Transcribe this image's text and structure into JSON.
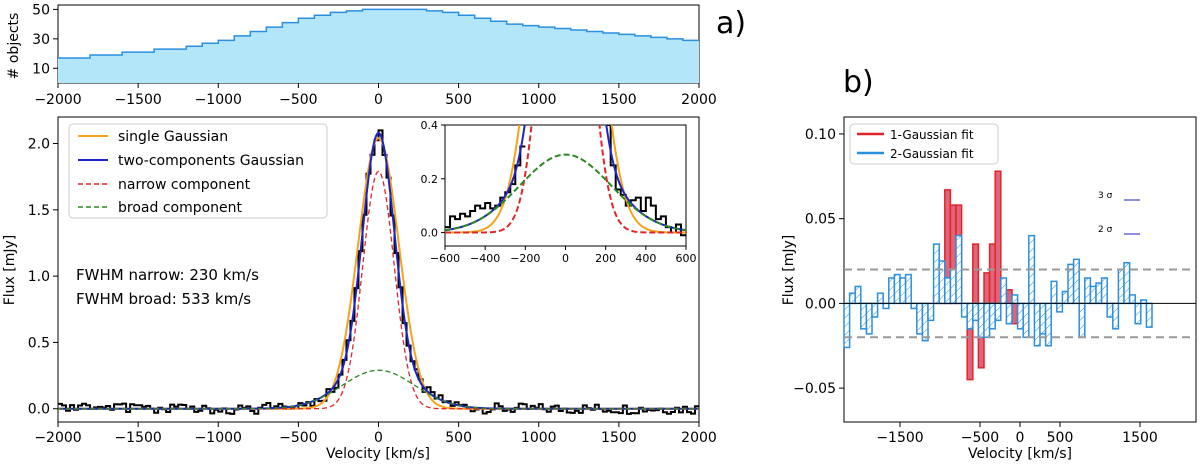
{
  "panel_labels": {
    "a": "a)",
    "b": "b)"
  },
  "chart_data": [
    {
      "id": "hist",
      "type": "area",
      "xlabel": "",
      "ylabel": "# objects",
      "xlim": [
        -2000,
        2000
      ],
      "ylim": [
        0,
        53
      ],
      "xticks": [
        -2000,
        -1500,
        -1000,
        -500,
        0,
        500,
        1000,
        1500,
        2000
      ],
      "yticks": [
        10,
        30,
        50
      ],
      "color": "#2b8fe0",
      "fill": "#b3e6f8",
      "series": [
        {
          "name": "objects",
          "x": [
            -2000,
            -1800,
            -1600,
            -1400,
            -1200,
            -1100,
            -1000,
            -900,
            -800,
            -700,
            -600,
            -500,
            -400,
            -300,
            -200,
            -100,
            0,
            100,
            200,
            300,
            400,
            500,
            600,
            700,
            800,
            900,
            1000,
            1100,
            1200,
            1300,
            1400,
            1500,
            1600,
            1700,
            1800,
            1900,
            2000
          ],
          "y": [
            17,
            19,
            21,
            23,
            25,
            27,
            29,
            32,
            35,
            38,
            41,
            44,
            46,
            48,
            49,
            50,
            50,
            50,
            50,
            49,
            48,
            46,
            44,
            42,
            40,
            39,
            38,
            37,
            36,
            35,
            34,
            33,
            32,
            31,
            30,
            29,
            28
          ]
        }
      ]
    },
    {
      "id": "main",
      "type": "line",
      "xlabel": "Velocity [km/s]",
      "ylabel": "Flux [mJy]",
      "xlim": [
        -2000,
        2000
      ],
      "ylim": [
        -0.1,
        2.2
      ],
      "xticks": [
        -2000,
        -1500,
        -1000,
        -500,
        0,
        500,
        1000,
        1500,
        2000
      ],
      "yticks": [
        0.0,
        0.5,
        1.0,
        1.5,
        2.0
      ],
      "legend": [
        "single Gaussian",
        "two-components Gaussian",
        "narrow component",
        "broad component"
      ],
      "annotations": [
        "FWHM narrow: 230 km/s",
        "FWHM broad: 533 km/s"
      ],
      "gaussians": [
        {
          "name": "single Gaussian",
          "color": "#f5a31a",
          "dash": false,
          "amp": 2.04,
          "fwhm": 300,
          "center": 0
        },
        {
          "name": "two-components Gaussian",
          "color": "#1f22c8",
          "dash": false,
          "components": [
            [
              1.79,
              230
            ],
            [
              0.29,
              533
            ]
          ],
          "center": 0
        },
        {
          "name": "narrow component",
          "color": "#e0252a",
          "dash": true,
          "amp": 1.79,
          "fwhm": 230,
          "center": 0
        },
        {
          "name": "broad component",
          "color": "#2a8a1e",
          "dash": true,
          "amp": 0.29,
          "fwhm": 533,
          "center": 0
        }
      ],
      "observed": {
        "name": "observed spectrum",
        "color": "#000000"
      }
    },
    {
      "id": "inset",
      "type": "line",
      "xlim": [
        -600,
        600
      ],
      "ylim": [
        -0.05,
        0.4
      ],
      "xticks": [
        -600,
        -400,
        -200,
        0,
        200,
        400,
        600
      ],
      "yticks": [
        0.0,
        0.2,
        0.4
      ],
      "observed_steps": {
        "x": [
          -600,
          -575,
          -550,
          -525,
          -500,
          -475,
          -450,
          -425,
          -400,
          -375,
          -350,
          -325,
          -300,
          -275,
          -250,
          -225,
          -200
        ],
        "y": [
          0.02,
          0.06,
          0.05,
          0.07,
          0.06,
          0.08,
          0.1,
          0.09,
          0.11,
          0.09,
          0.1,
          0.13,
          0.15,
          0.18,
          0.25,
          0.32,
          0.4
        ]
      },
      "observed_steps_right": {
        "x": [
          200,
          225,
          250,
          275,
          300,
          325,
          350,
          375,
          400,
          425,
          450,
          475,
          500,
          525,
          550,
          575,
          600
        ],
        "y": [
          0.4,
          0.25,
          0.16,
          0.14,
          0.1,
          0.12,
          0.13,
          0.08,
          0.13,
          0.1,
          0.05,
          0.06,
          0.02,
          0.0,
          0.03,
          -0.01,
          0.01
        ]
      }
    },
    {
      "id": "residuals",
      "type": "bar",
      "xlabel": "Velocity [km/s]",
      "ylabel": "Flux [mJy]",
      "xlim": [
        -2200,
        2200
      ],
      "ylim": [
        -0.07,
        0.11
      ],
      "xticks": [
        -1500,
        -500,
        0,
        500,
        1500
      ],
      "xtick_labels": [
        "−1500",
        "−500",
        "0",
        "500",
        "1500"
      ],
      "yticks": [
        -0.05,
        0.0,
        0.05,
        0.1
      ],
      "ytick_labels": [
        "−0.05",
        "0.00",
        "0.05",
        "0.10"
      ],
      "legend": [
        "1-Gaussian fit",
        "2-Gaussian fit"
      ],
      "sigma_labels": [
        "3 σ",
        "2 σ"
      ],
      "sigma_lines": [
        0.02,
        -0.02
      ],
      "bin_edges_start": -2200,
      "bin_width": 70,
      "one_gauss": [
        0,
        0,
        0,
        0,
        0,
        0,
        0,
        0,
        0,
        0,
        0,
        0,
        0,
        0,
        0,
        0,
        0.005,
        0.007,
        0.067,
        0.058,
        0.058,
        0.0,
        -0.045,
        0.035,
        -0.038,
        0.018,
        0.035,
        0.078,
        0.0,
        0.008,
        -0.012,
        0,
        0,
        0,
        0,
        0,
        0,
        0,
        0,
        0,
        0,
        0,
        0,
        0,
        0,
        0,
        0,
        0,
        0,
        0,
        0,
        0,
        0,
        0,
        0,
        0,
        0,
        0,
        0,
        0,
        0,
        0,
        0
      ],
      "two_gauss": [
        -0.026,
        0.006,
        0.01,
        -0.015,
        -0.018,
        -0.008,
        0.006,
        -0.003,
        0.015,
        0.017,
        0.015,
        0.017,
        -0.003,
        -0.018,
        -0.022,
        -0.01,
        0.035,
        0.025,
        0.015,
        0.02,
        0.04,
        -0.008,
        -0.015,
        -0.01,
        -0.02,
        -0.02,
        -0.015,
        -0.01,
        0.015,
        -0.012,
        0.005,
        -0.015,
        -0.02,
        0.04,
        -0.025,
        -0.018,
        -0.025,
        0.013,
        -0.005,
        0.007,
        0.023,
        0.026,
        -0.02,
        0.015,
        0.01,
        0.012,
        0.015,
        -0.008,
        -0.015,
        0.02,
        0.024,
        0.005,
        -0.012,
        0.002,
        -0.014,
        0.0,
        0.0,
        0.0,
        0.0,
        0.0,
        0.0,
        0.0,
        0.0
      ]
    }
  ]
}
